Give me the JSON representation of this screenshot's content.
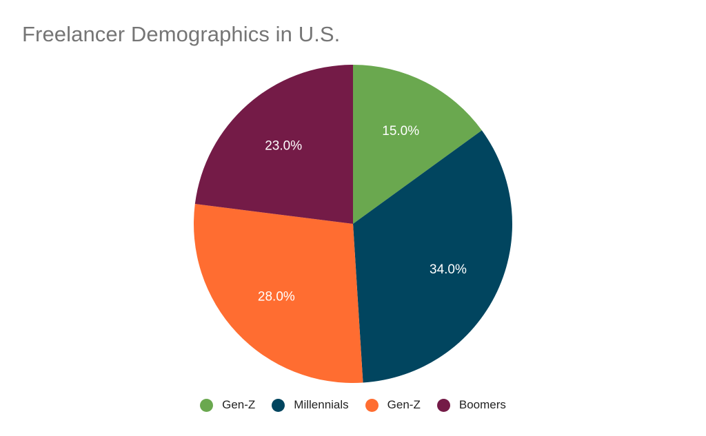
{
  "chart_data": {
    "type": "pie",
    "title": "Freelancer Demographics in U.S.",
    "categories": [
      "Gen-Z",
      "Millennials",
      "Gen-Z",
      "Boomers"
    ],
    "values": [
      15.0,
      34.0,
      28.0,
      23.0
    ],
    "labels": [
      "15.0%",
      "34.0%",
      "28.0%",
      "23.0%"
    ],
    "colors": [
      "#6aa84f",
      "#01455f",
      "#ff6d31",
      "#741b47"
    ],
    "start_angle": "12 o'clock",
    "direction": "clockwise",
    "legend_position": "bottom"
  },
  "title": "Freelancer Demographics in U.S.",
  "legend": [
    {
      "label": "Gen-Z",
      "color": "#6aa84f"
    },
    {
      "label": "Millennials",
      "color": "#01455f"
    },
    {
      "label": "Gen-Z",
      "color": "#ff6d31"
    },
    {
      "label": "Boomers",
      "color": "#741b47"
    }
  ]
}
